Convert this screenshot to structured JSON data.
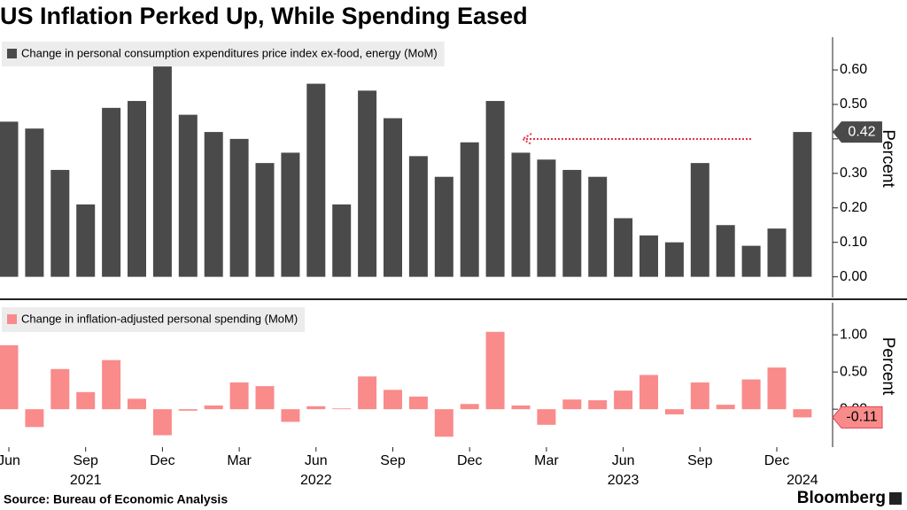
{
  "title": "US Inflation Perked Up, While Spending Eased",
  "source": "Source: Bureau of Economic Analysis",
  "logo": "Bloomberg",
  "categories": [
    "Jun",
    null,
    null,
    "Sep",
    null,
    null,
    "Dec",
    null,
    null,
    "Mar",
    null,
    null,
    "Jun",
    null,
    null,
    "Sep",
    null,
    null,
    "Dec",
    null,
    null,
    "Mar",
    null,
    null,
    "Jun",
    null,
    null,
    "Sep",
    null,
    null,
    "Dec",
    null
  ],
  "category_years": [
    null,
    null,
    null,
    "2021",
    null,
    null,
    null,
    null,
    null,
    null,
    null,
    null,
    "2022",
    null,
    null,
    null,
    null,
    null,
    null,
    null,
    null,
    null,
    null,
    null,
    "2023",
    null,
    null,
    null,
    null,
    null,
    null,
    "2024"
  ],
  "chart_data": [
    {
      "type": "bar",
      "ylabel": "Percent",
      "series": [
        {
          "name": "Change in personal consumption expenditures price index ex-food, energy (MoM)",
          "color": "#4a4a4a",
          "values": [
            0.45,
            0.43,
            0.31,
            0.21,
            0.49,
            0.51,
            0.61,
            0.47,
            0.42,
            0.4,
            0.33,
            0.36,
            0.56,
            0.21,
            0.54,
            0.46,
            0.35,
            0.29,
            0.39,
            0.51,
            0.36,
            0.34,
            0.31,
            0.29,
            0.17,
            0.12,
            0.1,
            0.33,
            0.15,
            0.09,
            0.14,
            0.42
          ]
        }
      ],
      "ylim": [
        -0.06,
        0.695
      ],
      "yticks": [
        {
          "value": 0,
          "label": "0.00"
        },
        {
          "value": 0.1,
          "label": "0.10"
        },
        {
          "value": 0.2,
          "label": "0.20"
        },
        {
          "value": 0.3,
          "label": "0.30"
        },
        {
          "value": 0.4,
          "label": "0.40"
        },
        {
          "value": 0.5,
          "label": "0.50"
        },
        {
          "value": 0.6,
          "label": "0.60"
        }
      ]
    },
    {
      "type": "bar",
      "ylabel": "Percent",
      "series": [
        {
          "name": "Change in inflation-adjusted personal spending (MoM)",
          "color": "#f98b8b",
          "values": [
            0.86,
            -0.24,
            0.54,
            0.23,
            0.66,
            0.14,
            -0.35,
            -0.02,
            0.05,
            0.36,
            0.31,
            -0.17,
            0.04,
            0.01,
            0.44,
            0.26,
            0.17,
            -0.37,
            0.07,
            1.04,
            0.05,
            -0.21,
            0.13,
            0.12,
            0.25,
            0.46,
            -0.07,
            0.36,
            0.06,
            0.4,
            0.56,
            -0.11
          ]
        }
      ],
      "ylim": [
        -0.51,
        1.43
      ],
      "yticks": [
        {
          "value": 0,
          "label": "0.00"
        },
        {
          "value": 0.5,
          "label": "0.50"
        },
        {
          "value": 1,
          "label": "1.00"
        }
      ]
    }
  ]
}
